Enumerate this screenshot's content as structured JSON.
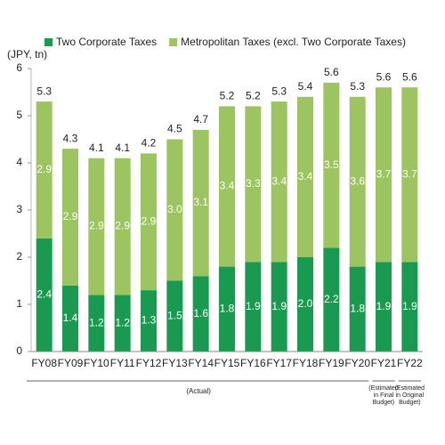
{
  "chart_data": {
    "type": "stacked_bar",
    "y_axis_label": "(JPY, tn)",
    "categories": [
      "FY08",
      "FY09",
      "FY10",
      "FY11",
      "FY12",
      "FY13",
      "FY14",
      "FY15",
      "FY16",
      "FY17",
      "FY18",
      "FY19",
      "FY20",
      "FY21",
      "FY22"
    ],
    "series": [
      {
        "name": "Two Corporate Taxes",
        "color": "#1a9a50",
        "values": [
          2.4,
          1.4,
          1.2,
          1.2,
          1.3,
          1.5,
          1.6,
          1.8,
          1.9,
          1.9,
          2,
          2.2,
          1.8,
          1.9,
          1.9
        ],
        "value_labels": [
          "2.4",
          "1.4",
          "1.2",
          "1.2",
          "1.3",
          "1.5",
          "1.6",
          "1.8",
          "1.9",
          "1.9",
          "2.0",
          "2.2",
          "1.8",
          "1.9",
          "1.9"
        ]
      },
      {
        "name": "Metropolitan Taxes (excl. Two Corporate Taxes)",
        "color": "#9cc460",
        "values": [
          2.9,
          2.9,
          2.9,
          2.9,
          2.9,
          3,
          3.1,
          3.4,
          3.3,
          3.4,
          3.4,
          3.5,
          3.6,
          3.7,
          3.7
        ],
        "value_labels": [
          "2.9",
          "2.9",
          "2.9",
          "2.9",
          "2.9",
          "3.0",
          "3.1",
          "3.4",
          "3.3",
          "3.4",
          "3.4",
          "3.5",
          "3.6",
          "3.7",
          "3.7"
        ]
      }
    ],
    "totals": [
      5.3,
      4.3,
      4.1,
      4.1,
      4.2,
      4.5,
      4.7,
      5.2,
      5.2,
      5.3,
      5.4,
      5.6,
      5.3,
      5.6,
      5.6
    ],
    "ylim": [
      0,
      6
    ],
    "yticks": [
      0,
      1,
      2,
      3,
      4,
      5,
      6
    ],
    "annotations": [
      "(Actual)",
      [
        "(Estimated",
        "in Final",
        "Budget)"
      ],
      [
        "(Estimated",
        "in Original",
        "Budget)"
      ]
    ]
  }
}
